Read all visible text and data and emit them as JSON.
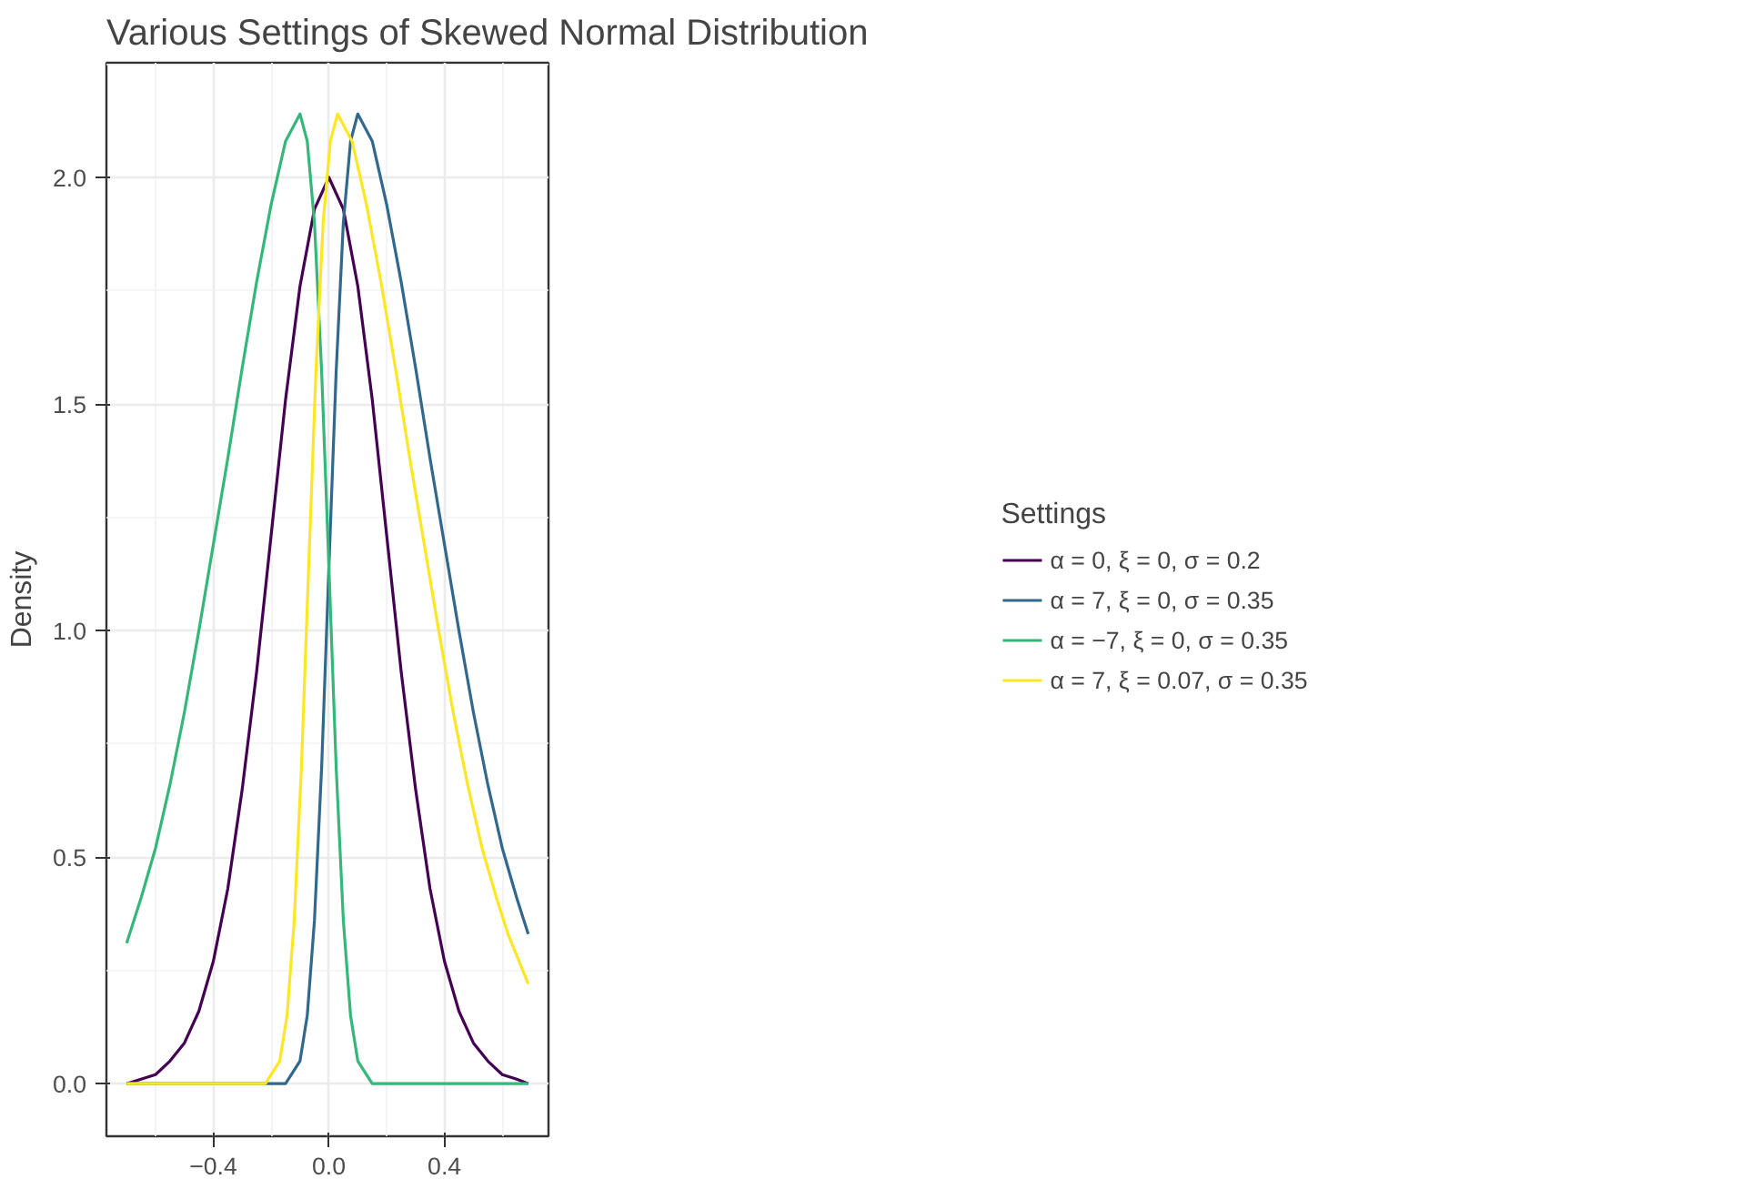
{
  "chart_data": {
    "type": "line",
    "title": "Various Settings of Skewed Normal Distribution",
    "ylabel": "Density",
    "legend_title": "Settings",
    "legend": "right",
    "grid": true,
    "xlim": [
      -0.77,
      0.76
    ],
    "ylim": [
      -0.116,
      2.253
    ],
    "xticks": [
      {
        "value": -0.4,
        "label": "−0.4"
      },
      {
        "value": 0,
        "label": "0.0"
      },
      {
        "value": 0.4,
        "label": "0.4"
      }
    ],
    "yticks": [
      {
        "value": 0,
        "label": "0.0"
      },
      0.5,
      {
        "value": 1,
        "label": "1.0"
      },
      1.5,
      {
        "value": 2,
        "label": "2.0"
      }
    ],
    "series": [
      {
        "name": "α = 0, ξ = 0, σ = 0.2",
        "color": "#440154",
        "x": [
          -0.7,
          -0.65,
          -0.6,
          -0.55,
          -0.5,
          -0.45,
          -0.4,
          -0.35,
          -0.3,
          -0.25,
          -0.2,
          -0.15,
          -0.1,
          -0.05,
          0,
          0.05,
          0.1,
          0.15,
          0.2,
          0.25,
          0.3,
          0.35,
          0.4,
          0.45,
          0.5,
          0.55,
          0.6,
          0.65,
          0.69
        ],
        "values": [
          0.0,
          0.01,
          0.02,
          0.05,
          0.09,
          0.16,
          0.27,
          0.43,
          0.65,
          0.91,
          1.21,
          1.51,
          1.76,
          1.93,
          2.0,
          1.93,
          1.76,
          1.51,
          1.21,
          0.91,
          0.65,
          0.43,
          0.27,
          0.16,
          0.09,
          0.05,
          0.02,
          0.01,
          0.0
        ]
      },
      {
        "name": "α = 7, ξ = 0, σ = 0.35",
        "color": "#31688e",
        "x": [
          -0.7,
          -0.2,
          -0.15,
          -0.1,
          -0.075,
          -0.05,
          -0.025,
          0,
          0.025,
          0.05,
          0.075,
          0.1,
          0.15,
          0.2,
          0.25,
          0.3,
          0.35,
          0.4,
          0.45,
          0.5,
          0.55,
          0.6,
          0.65,
          0.69
        ],
        "values": [
          0.0,
          0.0,
          0.0,
          0.05,
          0.15,
          0.36,
          0.7,
          1.14,
          1.57,
          1.9,
          2.08,
          2.14,
          2.08,
          1.94,
          1.77,
          1.58,
          1.38,
          1.19,
          1.0,
          0.82,
          0.66,
          0.52,
          0.41,
          0.33
        ]
      },
      {
        "name": "α = −7, ξ = 0, σ = 0.35",
        "color": "#35b779",
        "x": [
          -0.7,
          -0.65,
          -0.6,
          -0.55,
          -0.5,
          -0.45,
          -0.4,
          -0.35,
          -0.3,
          -0.25,
          -0.2,
          -0.15,
          -0.1,
          -0.075,
          -0.05,
          -0.025,
          0,
          0.025,
          0.05,
          0.075,
          0.1,
          0.15,
          0.2,
          0.69
        ],
        "values": [
          0.31,
          0.41,
          0.52,
          0.66,
          0.82,
          1.0,
          1.19,
          1.38,
          1.58,
          1.77,
          1.94,
          2.08,
          2.14,
          2.08,
          1.9,
          1.57,
          1.14,
          0.7,
          0.36,
          0.15,
          0.05,
          0.0,
          0.0,
          0.0
        ]
      },
      {
        "name": "α = 7, ξ = 0.07, σ = 0.35",
        "color": "#fde725",
        "x": [
          -0.7,
          -0.27,
          -0.22,
          -0.17,
          -0.145,
          -0.12,
          -0.095,
          -0.07,
          -0.045,
          -0.02,
          0.005,
          0.03,
          0.08,
          0.13,
          0.18,
          0.23,
          0.28,
          0.33,
          0.38,
          0.43,
          0.48,
          0.53,
          0.58,
          0.62,
          0.69
        ],
        "values": [
          0.0,
          0.0,
          0.0,
          0.05,
          0.15,
          0.36,
          0.7,
          1.14,
          1.57,
          1.9,
          2.08,
          2.14,
          2.08,
          1.94,
          1.77,
          1.58,
          1.38,
          1.19,
          1.0,
          0.82,
          0.66,
          0.52,
          0.41,
          0.33,
          0.22
        ]
      }
    ]
  }
}
